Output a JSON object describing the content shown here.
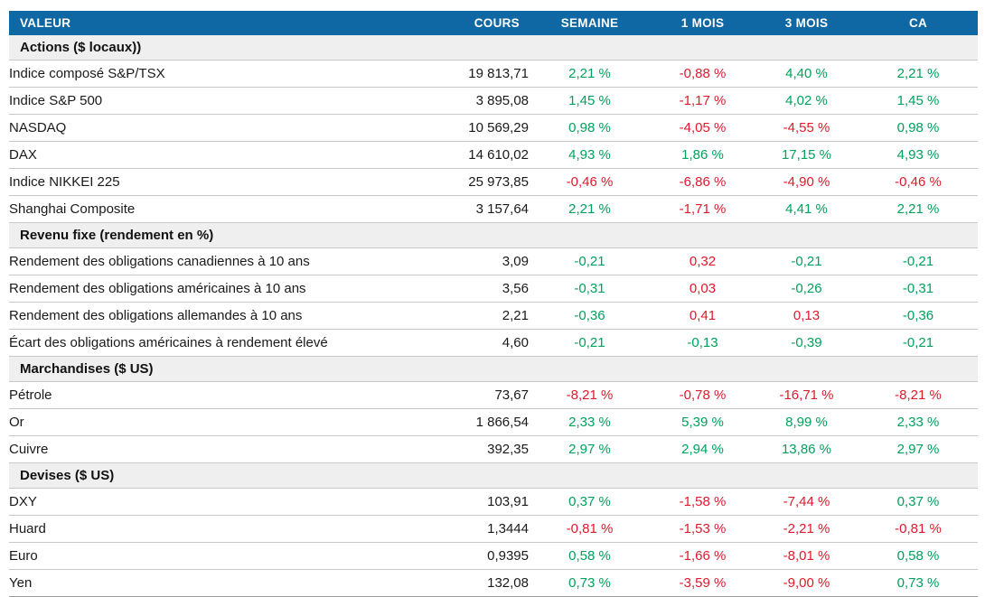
{
  "colors": {
    "header_bg": "#0F67A3",
    "header_text": "#FFFFFF",
    "positive": "#00A15D",
    "negative": "#E0192B",
    "section_bg": "#EFEFEF",
    "row_border": "#C9C9C9"
  },
  "table": {
    "columns": [
      {
        "key": "valeur",
        "label": "VALEUR"
      },
      {
        "key": "cours",
        "label": "COURS"
      },
      {
        "key": "semaine",
        "label": "SEMAINE"
      },
      {
        "key": "1mois",
        "label": "1 MOIS"
      },
      {
        "key": "3mois",
        "label": "3 MOIS"
      },
      {
        "key": "ca",
        "label": "CA"
      }
    ],
    "sections": [
      {
        "title": "Actions ($ locaux))",
        "rows": [
          {
            "label": "Indice composé S&P/TSX",
            "cours": "19 813,71",
            "changes": [
              {
                "text": "2,21 %",
                "tone": "up"
              },
              {
                "text": "-0,88 %",
                "tone": "down"
              },
              {
                "text": "4,40 %",
                "tone": "up"
              },
              {
                "text": "2,21 %",
                "tone": "up"
              }
            ]
          },
          {
            "label": "Indice S&P 500",
            "cours": "3 895,08",
            "changes": [
              {
                "text": "1,45 %",
                "tone": "up"
              },
              {
                "text": "-1,17 %",
                "tone": "down"
              },
              {
                "text": "4,02 %",
                "tone": "up"
              },
              {
                "text": "1,45 %",
                "tone": "up"
              }
            ]
          },
          {
            "label": "NASDAQ",
            "cours": "10 569,29",
            "changes": [
              {
                "text": "0,98 %",
                "tone": "up"
              },
              {
                "text": "-4,05 %",
                "tone": "down"
              },
              {
                "text": "-4,55 %",
                "tone": "down"
              },
              {
                "text": "0,98 %",
                "tone": "up"
              }
            ]
          },
          {
            "label": "DAX",
            "cours": "14 610,02",
            "changes": [
              {
                "text": "4,93 %",
                "tone": "up"
              },
              {
                "text": "1,86 %",
                "tone": "up"
              },
              {
                "text": "17,15 %",
                "tone": "up"
              },
              {
                "text": "4,93 %",
                "tone": "up"
              }
            ]
          },
          {
            "label": "Indice NIKKEI 225",
            "cours": "25 973,85",
            "changes": [
              {
                "text": "-0,46 %",
                "tone": "down"
              },
              {
                "text": "-6,86 %",
                "tone": "down"
              },
              {
                "text": "-4,90 %",
                "tone": "down"
              },
              {
                "text": "-0,46 %",
                "tone": "down"
              }
            ]
          },
          {
            "label": "Shanghai Composite",
            "cours": "3 157,64",
            "changes": [
              {
                "text": "2,21 %",
                "tone": "up"
              },
              {
                "text": "-1,71 %",
                "tone": "down"
              },
              {
                "text": "4,41 %",
                "tone": "up"
              },
              {
                "text": "2,21 %",
                "tone": "up"
              }
            ]
          }
        ]
      },
      {
        "title": "Revenu fixe (rendement en %)",
        "rows": [
          {
            "label": "Rendement des obligations canadiennes à 10 ans",
            "cours": "3,09",
            "changes": [
              {
                "text": "-0,21",
                "tone": "up"
              },
              {
                "text": "0,32",
                "tone": "down"
              },
              {
                "text": "-0,21",
                "tone": "up"
              },
              {
                "text": "-0,21",
                "tone": "up"
              }
            ]
          },
          {
            "label": "Rendement des obligations américaines à 10 ans",
            "cours": "3,56",
            "changes": [
              {
                "text": "-0,31",
                "tone": "up"
              },
              {
                "text": "0,03",
                "tone": "down"
              },
              {
                "text": "-0,26",
                "tone": "up"
              },
              {
                "text": "-0,31",
                "tone": "up"
              }
            ]
          },
          {
            "label": "Rendement des obligations allemandes à 10 ans",
            "cours": "2,21",
            "changes": [
              {
                "text": "-0,36",
                "tone": "up"
              },
              {
                "text": "0,41",
                "tone": "down"
              },
              {
                "text": "0,13",
                "tone": "down"
              },
              {
                "text": "-0,36",
                "tone": "up"
              }
            ]
          },
          {
            "label": "Écart des obligations américaines à rendement élevé",
            "cours": "4,60",
            "changes": [
              {
                "text": "-0,21",
                "tone": "up"
              },
              {
                "text": "-0,13",
                "tone": "up"
              },
              {
                "text": "-0,39",
                "tone": "up"
              },
              {
                "text": "-0,21",
                "tone": "up"
              }
            ]
          }
        ]
      },
      {
        "title": "Marchandises ($ US)",
        "rows": [
          {
            "label": "Pétrole",
            "cours": "73,67",
            "changes": [
              {
                "text": "-8,21 %",
                "tone": "down"
              },
              {
                "text": "-0,78 %",
                "tone": "down"
              },
              {
                "text": "-16,71 %",
                "tone": "down"
              },
              {
                "text": "-8,21 %",
                "tone": "down"
              }
            ]
          },
          {
            "label": "Or",
            "cours": "1 866,54",
            "changes": [
              {
                "text": "2,33 %",
                "tone": "up"
              },
              {
                "text": "5,39 %",
                "tone": "up"
              },
              {
                "text": "8,99 %",
                "tone": "up"
              },
              {
                "text": "2,33 %",
                "tone": "up"
              }
            ]
          },
          {
            "label": "Cuivre",
            "cours": "392,35",
            "changes": [
              {
                "text": "2,97 %",
                "tone": "up"
              },
              {
                "text": "2,94 %",
                "tone": "up"
              },
              {
                "text": "13,86 %",
                "tone": "up"
              },
              {
                "text": "2,97 %",
                "tone": "up"
              }
            ]
          }
        ]
      },
      {
        "title": "Devises ($ US)",
        "rows": [
          {
            "label": "DXY",
            "cours": "103,91",
            "changes": [
              {
                "text": "0,37 %",
                "tone": "up"
              },
              {
                "text": "-1,58 %",
                "tone": "down"
              },
              {
                "text": "-7,44 %",
                "tone": "down"
              },
              {
                "text": "0,37 %",
                "tone": "up"
              }
            ]
          },
          {
            "label": "Huard",
            "cours": "1,3444",
            "changes": [
              {
                "text": "-0,81 %",
                "tone": "down"
              },
              {
                "text": "-1,53 %",
                "tone": "down"
              },
              {
                "text": "-2,21 %",
                "tone": "down"
              },
              {
                "text": "-0,81 %",
                "tone": "down"
              }
            ]
          },
          {
            "label": "Euro",
            "cours": "0,9395",
            "changes": [
              {
                "text": "0,58 %",
                "tone": "up"
              },
              {
                "text": "-1,66 %",
                "tone": "down"
              },
              {
                "text": "-8,01 %",
                "tone": "down"
              },
              {
                "text": "0,58 %",
                "tone": "up"
              }
            ]
          },
          {
            "label": "Yen",
            "cours": "132,08",
            "changes": [
              {
                "text": "0,73 %",
                "tone": "up"
              },
              {
                "text": "-3,59 %",
                "tone": "down"
              },
              {
                "text": "-9,00 %",
                "tone": "down"
              },
              {
                "text": "0,73 %",
                "tone": "up"
              }
            ]
          }
        ]
      }
    ]
  }
}
